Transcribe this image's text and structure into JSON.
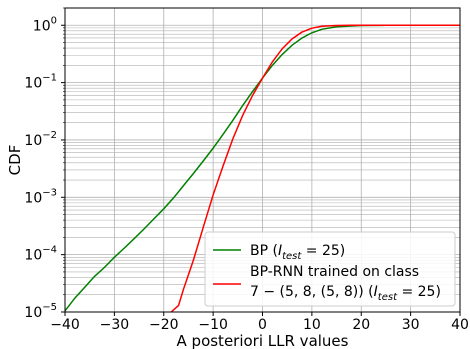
{
  "chart_data": {
    "type": "line",
    "title": "",
    "xlabel": "A posteriori LLR values",
    "ylabel": "CDF",
    "xlim": [
      -40,
      40
    ],
    "ylim": [
      1e-05,
      2
    ],
    "yscale": "log",
    "grid": true,
    "x_ticks": [
      -40,
      -30,
      -20,
      -10,
      0,
      10,
      20,
      30,
      40
    ],
    "x_tick_labels": [
      "−40",
      "−30",
      "−20",
      "−10",
      "0",
      "10",
      "20",
      "30",
      "40"
    ],
    "y_ticks": [
      {
        "value": 1e-05,
        "base": "10",
        "exp": "−5"
      },
      {
        "value": 0.0001,
        "base": "10",
        "exp": "−4"
      },
      {
        "value": 0.001,
        "base": "10",
        "exp": "−3"
      },
      {
        "value": 0.01,
        "base": "10",
        "exp": "−2"
      },
      {
        "value": 0.1,
        "base": "10",
        "exp": "−1"
      },
      {
        "value": 1,
        "base": "10",
        "exp": "0"
      }
    ],
    "legend_position": "lower-right",
    "series": [
      {
        "name": "BP (I_test = 25)",
        "color": "#008000",
        "x": [
          -40,
          -38,
          -36,
          -34,
          -32,
          -30,
          -28,
          -26,
          -24,
          -22,
          -20,
          -18,
          -16,
          -14,
          -12,
          -10,
          -8,
          -6,
          -4,
          -2,
          0,
          2,
          4,
          6,
          8,
          10,
          12,
          15,
          20,
          25,
          30,
          40
        ],
        "y": [
          1.05e-05,
          1.75e-05,
          2.7e-05,
          4.2e-05,
          6e-05,
          9e-05,
          0.00013,
          0.00019,
          0.00028,
          0.00042,
          0.00063,
          0.00098,
          0.0016,
          0.0026,
          0.0043,
          0.0072,
          0.0125,
          0.022,
          0.04,
          0.07,
          0.12,
          0.2,
          0.31,
          0.45,
          0.6,
          0.74,
          0.85,
          0.94,
          0.99,
          0.998,
          1.0,
          1.0
        ]
      },
      {
        "name": "BP-RNN trained on class 7 − (5, 8, (5, 8)) (I_test = 25)",
        "color": "#ff0000",
        "x": [
          -18.5,
          -17,
          -16,
          -14,
          -12,
          -10,
          -8,
          -6,
          -4,
          -2,
          0,
          2,
          4,
          6,
          8,
          10,
          12,
          15,
          18,
          20,
          25,
          30,
          40
        ],
        "y": [
          1e-05,
          1.3e-05,
          2.5e-05,
          8e-05,
          0.0003,
          0.0011,
          0.0035,
          0.0105,
          0.027,
          0.06,
          0.12,
          0.23,
          0.39,
          0.58,
          0.76,
          0.89,
          0.96,
          0.99,
          0.998,
          1.0,
          1.0,
          1.0,
          1.0
        ]
      }
    ],
    "legend": [
      {
        "lines": [
          {
            "text": "BP (",
            "italic": false
          },
          {
            "text": "I",
            "italic": true
          },
          {
            "sub": "test",
            "italic": true
          },
          {
            "text": " = 25)",
            "italic": false
          }
        ]
      },
      {
        "lines": [
          {
            "text": "BP-RNN trained on class",
            "italic": false
          }
        ]
      },
      {
        "lines": [
          {
            "text": "7 − (5, 8, (5, 8)) (",
            "italic": false
          },
          {
            "text": "I",
            "italic": true
          },
          {
            "sub": "test",
            "italic": true
          },
          {
            "text": " = 25)",
            "italic": false
          }
        ]
      }
    ]
  }
}
